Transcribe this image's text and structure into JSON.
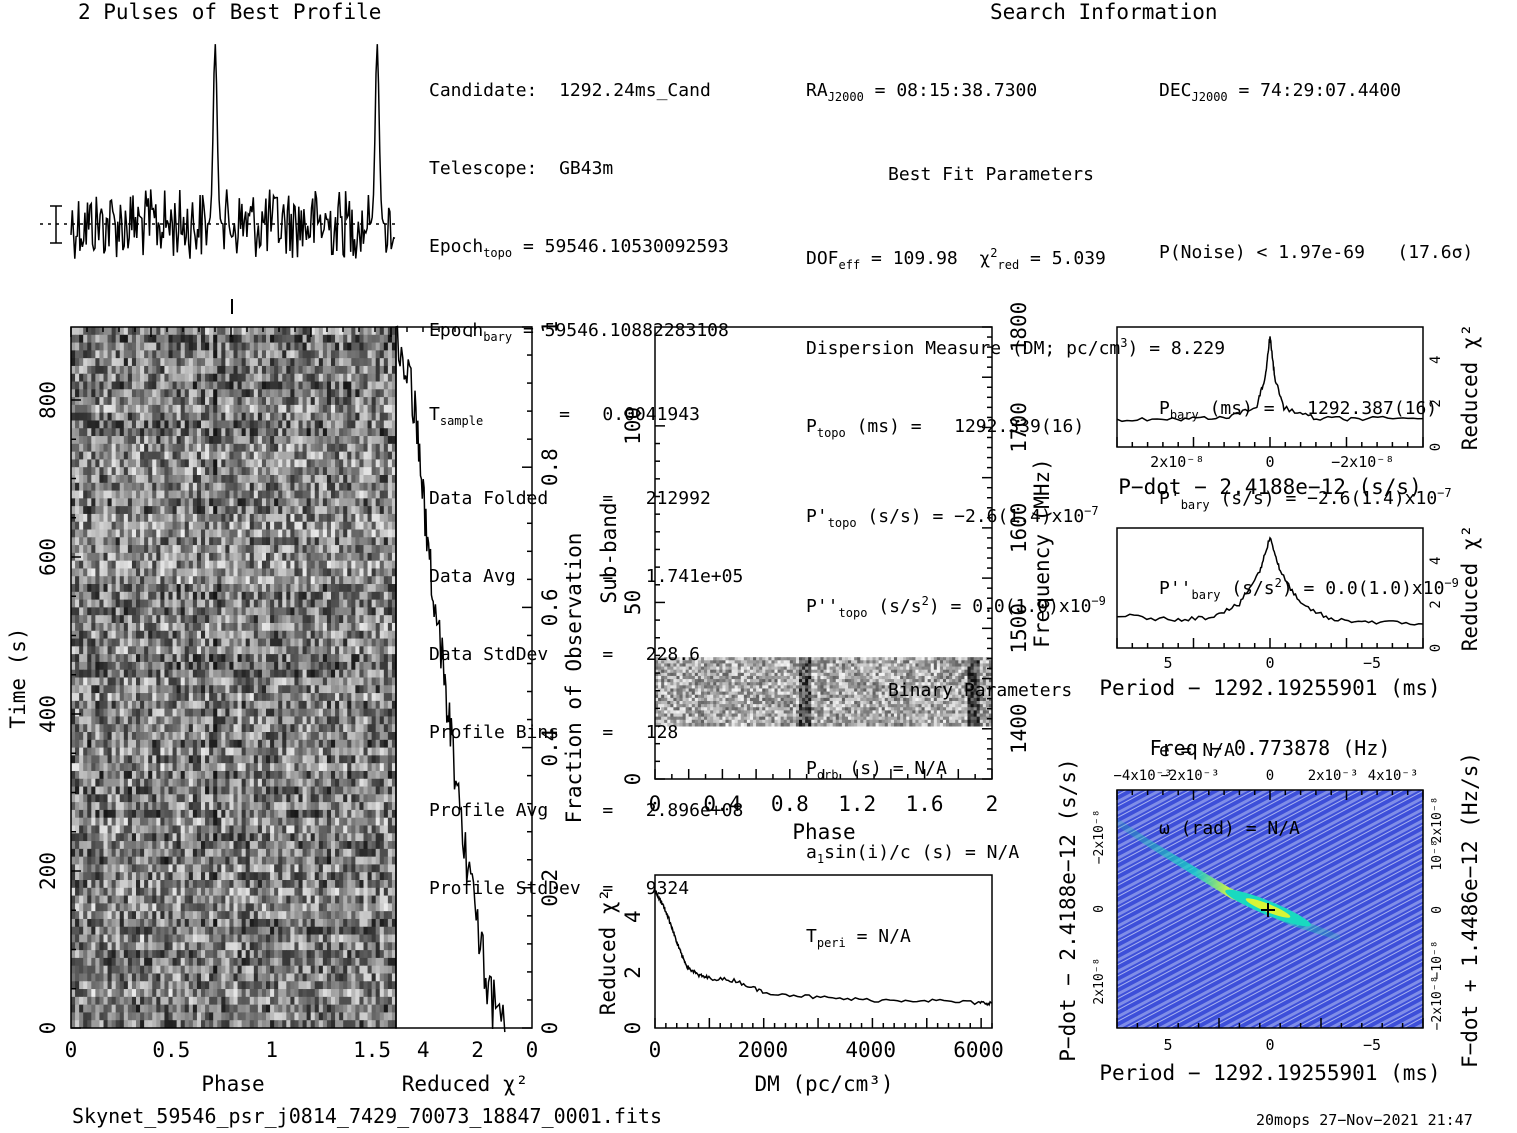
{
  "titles": {
    "profile_title": "2 Pulses of Best Profile",
    "search_title": "Search Information",
    "best_fit_title": "Best Fit Parameters",
    "binary_title": "Binary Parameters"
  },
  "left_info": [
    {
      "label": "Candidate:",
      "value": "1292.24ms_Cand"
    },
    {
      "label": "Telescope:",
      "value": "GB43m"
    },
    {
      "label": "Epoch",
      "sub": "topo",
      "value": "= 59546.10530092593"
    },
    {
      "label": "Epoch",
      "sub": "bary",
      "value": "= 59546.10882283108"
    },
    {
      "label": "T",
      "sub": "sample",
      "value": "=   0.0041943"
    },
    {
      "label": "Data Folded",
      "value": "=   212992"
    },
    {
      "label": "Data Avg",
      "value": "=   1.741e+05"
    },
    {
      "label": "Data StdDev",
      "value": "=   228.6"
    },
    {
      "label": "Profile Bins",
      "value": "=   128"
    },
    {
      "label": "Profile Avg",
      "value": "=   2.896e+08"
    },
    {
      "label": "Profile StdDev",
      "value": "=   9324"
    }
  ],
  "search_info": {
    "ra": "= 08:15:38.7300",
    "ra_label": "RA",
    "ra_sub": "J2000",
    "dec": "= 74:29:07.4400",
    "dec_label": "DEC",
    "dec_sub": "J2000",
    "dof": "= 109.98",
    "chi2": "= 5.039",
    "pnoise": "P(Noise) < 1.97e-69   (17.6σ)",
    "dm": "= 8.229",
    "dm_label": "Dispersion Measure (DM; pc/cm",
    "p_topo": "=   1292.339(16)",
    "p_bary": "=   1292.387(16)",
    "pd_topo": "= −2.6(1.4)x10",
    "pd_bary": "= −2.6(1.4)x10",
    "pd_exp": "−7",
    "pdd_topo": "= 0.0(1.0)x10",
    "pdd_bary": "= 0.0(1.0)x10",
    "pdd_exp": "−9",
    "porb": "= N/A",
    "a1": "= N/A",
    "tperi": "= N/A",
    "ecc": "e = N/A",
    "omega": "ω (rad) = N/A"
  },
  "footer": {
    "filename": "Skynet_59546_psr_j0814_7429_70073_18847_0001.fits",
    "stamp": "20mops 27−Nov−2021 21:47"
  },
  "chart_data": [
    {
      "type": "line",
      "id": "pulse_profile",
      "title": "2 Pulses of Best Profile",
      "xlabel": "",
      "ylabel": "",
      "x_range": [
        0,
        2
      ],
      "peaks_phase": [
        0.89,
        1.89
      ],
      "grid": false
    },
    {
      "type": "heatmap",
      "id": "time_phase",
      "xlabel": "Phase",
      "ylabel": "Time (s)",
      "xlim": [
        0,
        2
      ],
      "ylim": [
        0,
        893
      ],
      "x_ticks": [
        "0",
        "0.5",
        "1",
        "1.5"
      ],
      "y_ticks": [
        "0",
        "200",
        "400",
        "600",
        "800"
      ],
      "colormap": "grayscale"
    },
    {
      "type": "line",
      "id": "time_chi2",
      "xlabel": "Reduced χ²",
      "ylabel": "Fraction of Observation",
      "xlim": [
        5,
        0
      ],
      "ylim": [
        0,
        1
      ],
      "x_ticks": [
        "4",
        "2",
        "0"
      ],
      "y_ticks": [
        "0",
        "0.2",
        "0.4",
        "0.6",
        "0.8",
        "1"
      ],
      "points": [
        [
          1.0,
          0
        ],
        [
          1.4,
          0.03
        ],
        [
          1.7,
          0.08
        ],
        [
          2.0,
          0.15
        ],
        [
          2.3,
          0.22
        ],
        [
          2.6,
          0.3
        ],
        [
          2.9,
          0.38
        ],
        [
          3.1,
          0.45
        ],
        [
          3.3,
          0.52
        ],
        [
          3.6,
          0.6
        ],
        [
          3.8,
          0.68
        ],
        [
          4.0,
          0.76
        ],
        [
          4.2,
          0.84
        ],
        [
          4.4,
          0.9
        ],
        [
          4.7,
          0.96
        ],
        [
          5.0,
          1.0
        ]
      ]
    },
    {
      "type": "heatmap",
      "id": "subband_phase",
      "xlabel": "Phase",
      "ylabel": "Sub-band",
      "y2label": "Frequency (MHz)",
      "xlim": [
        0,
        2
      ],
      "ylim": [
        0,
        128
      ],
      "y2lim": [
        1350,
        1800
      ],
      "x_ticks": [
        "0",
        "0.4",
        "0.8",
        "1.2",
        "1.6",
        "2"
      ],
      "y_ticks": [
        "0",
        "50",
        "100"
      ],
      "y2_ticks": [
        "1400",
        "1500",
        "1600",
        "1700",
        "1800"
      ],
      "band_subbands": [
        16,
        32
      ],
      "peaks_phase": [
        0.89,
        1.89
      ],
      "colormap": "grayscale"
    },
    {
      "type": "line",
      "id": "dm_chi2",
      "xlabel": "DM (pc/cm³)",
      "ylabel": "Reduced χ²",
      "xlim": [
        0,
        6250
      ],
      "ylim": [
        0,
        5.5
      ],
      "x_ticks": [
        "0",
        "2000",
        "4000",
        "6000"
      ],
      "y_ticks": [
        "0",
        "2",
        "4"
      ],
      "points": [
        [
          0,
          4.9
        ],
        [
          100,
          4.6
        ],
        [
          200,
          4.2
        ],
        [
          300,
          3.7
        ],
        [
          400,
          3.1
        ],
        [
          500,
          2.6
        ],
        [
          600,
          2.2
        ],
        [
          800,
          1.9
        ],
        [
          1000,
          1.8
        ],
        [
          1500,
          1.7
        ],
        [
          2000,
          1.3
        ],
        [
          3000,
          1.1
        ],
        [
          4000,
          1.0
        ],
        [
          5000,
          1.0
        ],
        [
          6000,
          0.9
        ],
        [
          6250,
          0.9
        ]
      ]
    },
    {
      "type": "line",
      "id": "pdot_chi2",
      "xlabel": "P−dot − 2.4188e−12 (s/s)",
      "ylabel": "Reduced χ²",
      "xlim": [
        3.3e-08,
        -3.3e-08
      ],
      "ylim": [
        0,
        5.5
      ],
      "x_ticks": [
        "2x10⁻⁸",
        "0",
        "−2x10⁻⁸"
      ],
      "y_ticks": [
        "0",
        "2",
        "4"
      ],
      "points": [
        [
          3.3e-08,
          1.2
        ],
        [
          2e-08,
          1.3
        ],
        [
          1e-08,
          1.3
        ],
        [
          3e-09,
          1.8
        ],
        [
          1e-09,
          3.2
        ],
        [
          0,
          5.1
        ],
        [
          -1e-09,
          3.2
        ],
        [
          -3e-09,
          1.8
        ],
        [
          -1e-08,
          1.3
        ],
        [
          -2e-08,
          1.3
        ],
        [
          -3.3e-08,
          1.3
        ]
      ]
    },
    {
      "type": "line",
      "id": "period_chi2",
      "xlabel": "Period − 1292.19255901 (ms)",
      "ylabel": "Reduced χ²",
      "xlim": [
        7.5,
        -7.5
      ],
      "ylim": [
        0,
        5.5
      ],
      "x_ticks": [
        "5",
        "0",
        "−5"
      ],
      "y_ticks": [
        "0",
        "2",
        "4"
      ],
      "points": [
        [
          7.5,
          1.5
        ],
        [
          5,
          1.3
        ],
        [
          3,
          1.4
        ],
        [
          1.5,
          2.0
        ],
        [
          0.5,
          3.5
        ],
        [
          0,
          5.1
        ],
        [
          -0.5,
          3.5
        ],
        [
          -1.5,
          2.0
        ],
        [
          -3,
          1.3
        ],
        [
          -5,
          1.2
        ],
        [
          -7.5,
          1.1
        ]
      ]
    },
    {
      "type": "heatmap",
      "id": "period_pdot",
      "title": "Freq − 0.773878 (Hz)",
      "xlabel": "Period − 1292.19255901 (ms)",
      "ylabel": "P−dot − 2.4188e−12 (s/s)",
      "y2label": "F−dot + 1.4486e−12 (Hz/s)",
      "xlim": [
        7.5,
        -7.5
      ],
      "ylim": [
        3.3e-08,
        -3.3e-08
      ],
      "x_ticks": [
        "5",
        "0",
        "−5"
      ],
      "x2_ticks": [
        "−4x10⁻³",
        "−2x10⁻³",
        "0",
        "2x10⁻³",
        "4x10⁻³"
      ],
      "y_ticks": [
        "−2x10⁻⁸",
        "0",
        "2x10⁻⁸"
      ],
      "y2_ticks": [
        "2x10⁻⁸",
        "10⁻⁸",
        "0",
        "−10⁻⁸",
        "−2x10⁻⁸"
      ],
      "best": [
        0,
        0
      ],
      "colormap": "blue-green"
    }
  ]
}
